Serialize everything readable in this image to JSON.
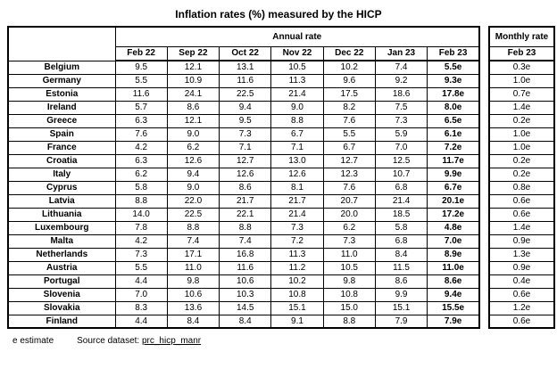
{
  "page": {
    "title": "Inflation rates (%) measured by the HICP",
    "footnote": "e estimate",
    "source_label": "Source dataset:",
    "source_link": "prc_hicp_manr"
  },
  "colors": {
    "background": "#ffffff",
    "border": "#000000",
    "text": "#000000"
  },
  "table": {
    "group_header": "Annual rate",
    "monthly_group_header": "Monthly rate",
    "columns": [
      "Feb 22",
      "Sep 22",
      "Oct 22",
      "Nov 22",
      "Dec 22",
      "Jan 23",
      "Feb 23"
    ],
    "monthly_column": "Feb 23",
    "rows": [
      {
        "country": "Belgium",
        "values": [
          "9.5",
          "12.1",
          "13.1",
          "10.5",
          "10.2",
          "7.4",
          "5.5e"
        ],
        "monthly": "0.3e"
      },
      {
        "country": "Germany",
        "values": [
          "5.5",
          "10.9",
          "11.6",
          "11.3",
          "9.6",
          "9.2",
          "9.3e"
        ],
        "monthly": "1.0e"
      },
      {
        "country": "Estonia",
        "values": [
          "11.6",
          "24.1",
          "22.5",
          "21.4",
          "17.5",
          "18.6",
          "17.8e"
        ],
        "monthly": "0.7e"
      },
      {
        "country": "Ireland",
        "values": [
          "5.7",
          "8.6",
          "9.4",
          "9.0",
          "8.2",
          "7.5",
          "8.0e"
        ],
        "monthly": "1.4e"
      },
      {
        "country": "Greece",
        "values": [
          "6.3",
          "12.1",
          "9.5",
          "8.8",
          "7.6",
          "7.3",
          "6.5e"
        ],
        "monthly": "0.2e"
      },
      {
        "country": "Spain",
        "values": [
          "7.6",
          "9.0",
          "7.3",
          "6.7",
          "5.5",
          "5.9",
          "6.1e"
        ],
        "monthly": "1.0e"
      },
      {
        "country": "France",
        "values": [
          "4.2",
          "6.2",
          "7.1",
          "7.1",
          "6.7",
          "7.0",
          "7.2e"
        ],
        "monthly": "1.0e"
      },
      {
        "country": "Croatia",
        "values": [
          "6.3",
          "12.6",
          "12.7",
          "13.0",
          "12.7",
          "12.5",
          "11.7e"
        ],
        "monthly": "0.2e"
      },
      {
        "country": "Italy",
        "values": [
          "6.2",
          "9.4",
          "12.6",
          "12.6",
          "12.3",
          "10.7",
          "9.9e"
        ],
        "monthly": "0.2e"
      },
      {
        "country": "Cyprus",
        "values": [
          "5.8",
          "9.0",
          "8.6",
          "8.1",
          "7.6",
          "6.8",
          "6.7e"
        ],
        "monthly": "0.8e"
      },
      {
        "country": "Latvia",
        "values": [
          "8.8",
          "22.0",
          "21.7",
          "21.7",
          "20.7",
          "21.4",
          "20.1e"
        ],
        "monthly": "0.6e"
      },
      {
        "country": "Lithuania",
        "values": [
          "14.0",
          "22.5",
          "22.1",
          "21.4",
          "20.0",
          "18.5",
          "17.2e"
        ],
        "monthly": "0.6e"
      },
      {
        "country": "Luxembourg",
        "values": [
          "7.8",
          "8.8",
          "8.8",
          "7.3",
          "6.2",
          "5.8",
          "4.8e"
        ],
        "monthly": "1.4e"
      },
      {
        "country": "Malta",
        "values": [
          "4.2",
          "7.4",
          "7.4",
          "7.2",
          "7.3",
          "6.8",
          "7.0e"
        ],
        "monthly": "0.9e"
      },
      {
        "country": "Netherlands",
        "values": [
          "7.3",
          "17.1",
          "16.8",
          "11.3",
          "11.0",
          "8.4",
          "8.9e"
        ],
        "monthly": "1.3e"
      },
      {
        "country": "Austria",
        "values": [
          "5.5",
          "11.0",
          "11.6",
          "11.2",
          "10.5",
          "11.5",
          "11.0e"
        ],
        "monthly": "0.9e"
      },
      {
        "country": "Portugal",
        "values": [
          "4.4",
          "9.8",
          "10.6",
          "10.2",
          "9.8",
          "8.6",
          "8.6e"
        ],
        "monthly": "0.4e"
      },
      {
        "country": "Slovenia",
        "values": [
          "7.0",
          "10.6",
          "10.3",
          "10.8",
          "10.8",
          "9.9",
          "9.4e"
        ],
        "monthly": "0.6e"
      },
      {
        "country": "Slovakia",
        "values": [
          "8.3",
          "13.6",
          "14.5",
          "15.1",
          "15.0",
          "15.1",
          "15.5e"
        ],
        "monthly": "1.2e"
      },
      {
        "country": "Finland",
        "values": [
          "4.4",
          "8.4",
          "8.4",
          "9.1",
          "8.8",
          "7.9",
          "7.9e"
        ],
        "monthly": "0.6e"
      }
    ]
  }
}
